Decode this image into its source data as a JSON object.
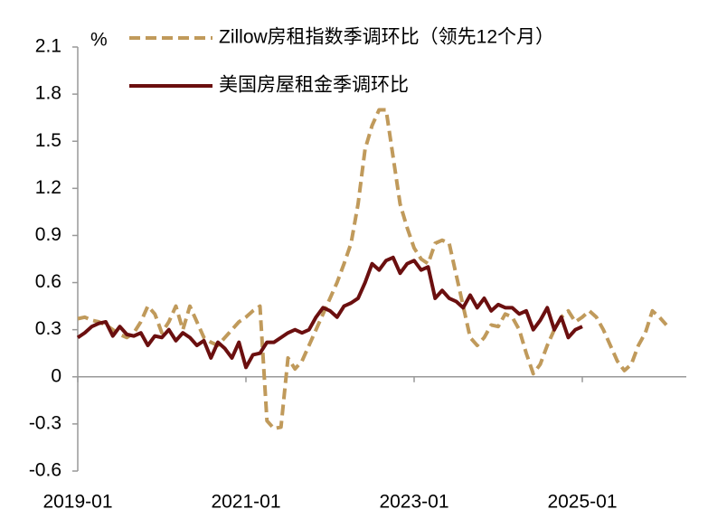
{
  "chart_data": {
    "type": "line",
    "y_unit": "%",
    "categories": [
      "2019-01",
      null,
      null,
      null,
      null,
      null,
      null,
      null,
      null,
      null,
      null,
      null,
      null,
      null,
      null,
      null,
      null,
      null,
      null,
      null,
      null,
      null,
      null,
      null,
      "2021-01",
      null,
      null,
      null,
      null,
      null,
      null,
      null,
      null,
      null,
      null,
      null,
      null,
      null,
      null,
      null,
      null,
      null,
      null,
      null,
      null,
      null,
      null,
      null,
      "2023-01",
      null,
      null,
      null,
      null,
      null,
      null,
      null,
      null,
      null,
      null,
      null,
      null,
      null,
      null,
      null,
      null,
      null,
      null,
      null,
      null,
      null,
      null,
      null,
      "2025-01",
      null,
      null,
      null,
      null,
      null,
      null,
      null,
      null,
      null,
      null,
      null,
      null
    ],
    "series": [
      {
        "name": "Zillow房租指数季调环比（领先12个月）",
        "color": "#c09a5b",
        "dash": true,
        "values": [
          0.37,
          0.38,
          0.36,
          0.35,
          0.33,
          0.3,
          0.27,
          0.25,
          0.28,
          0.35,
          0.45,
          0.4,
          0.28,
          0.35,
          0.45,
          0.3,
          0.45,
          0.35,
          0.25,
          0.22,
          0.2,
          0.25,
          0.3,
          0.35,
          0.38,
          0.42,
          0.45,
          -0.28,
          -0.33,
          -0.32,
          0.12,
          0.05,
          0.1,
          0.2,
          0.3,
          0.4,
          0.5,
          0.6,
          0.72,
          0.85,
          1.1,
          1.45,
          1.6,
          1.7,
          1.7,
          1.4,
          1.1,
          0.95,
          0.82,
          0.75,
          0.72,
          0.85,
          0.87,
          0.85,
          0.65,
          0.45,
          0.25,
          0.2,
          0.25,
          0.33,
          0.32,
          0.4,
          0.38,
          0.3,
          0.15,
          0.02,
          0.08,
          0.2,
          0.3,
          0.38,
          0.42,
          0.35,
          0.38,
          0.42,
          0.38,
          0.3,
          0.2,
          0.1,
          0.04,
          0.08,
          0.2,
          0.28,
          0.42,
          0.38,
          0.33
        ]
      },
      {
        "name": "美国房屋租金季调环比",
        "color": "#6b0f0f",
        "dash": false,
        "values": [
          0.25,
          0.28,
          0.32,
          0.34,
          0.35,
          0.26,
          0.32,
          0.27,
          0.26,
          0.28,
          0.2,
          0.26,
          0.25,
          0.3,
          0.23,
          0.28,
          0.25,
          0.2,
          0.23,
          0.12,
          0.22,
          0.18,
          0.12,
          0.22,
          0.06,
          0.14,
          0.15,
          0.22,
          0.22,
          0.25,
          0.28,
          0.3,
          0.28,
          0.3,
          0.38,
          0.44,
          0.42,
          0.38,
          0.45,
          0.47,
          0.5,
          0.6,
          0.72,
          0.68,
          0.74,
          0.76,
          0.66,
          0.72,
          0.74,
          0.68,
          0.7,
          0.5,
          0.55,
          0.5,
          0.48,
          0.44,
          0.52,
          0.44,
          0.5,
          0.42,
          0.46,
          0.44,
          0.44,
          0.4,
          0.42,
          0.3,
          0.36,
          0.44,
          0.3,
          0.38,
          0.25,
          0.3,
          0.32,
          null,
          null,
          null,
          null,
          null,
          null,
          null,
          null,
          null,
          null,
          null,
          null
        ]
      }
    ],
    "ylim": [
      -0.6,
      2.1
    ],
    "yticks": [
      -0.6,
      -0.3,
      0,
      0.3,
      0.6,
      0.9,
      1.2,
      1.5,
      1.8,
      2.1
    ]
  }
}
